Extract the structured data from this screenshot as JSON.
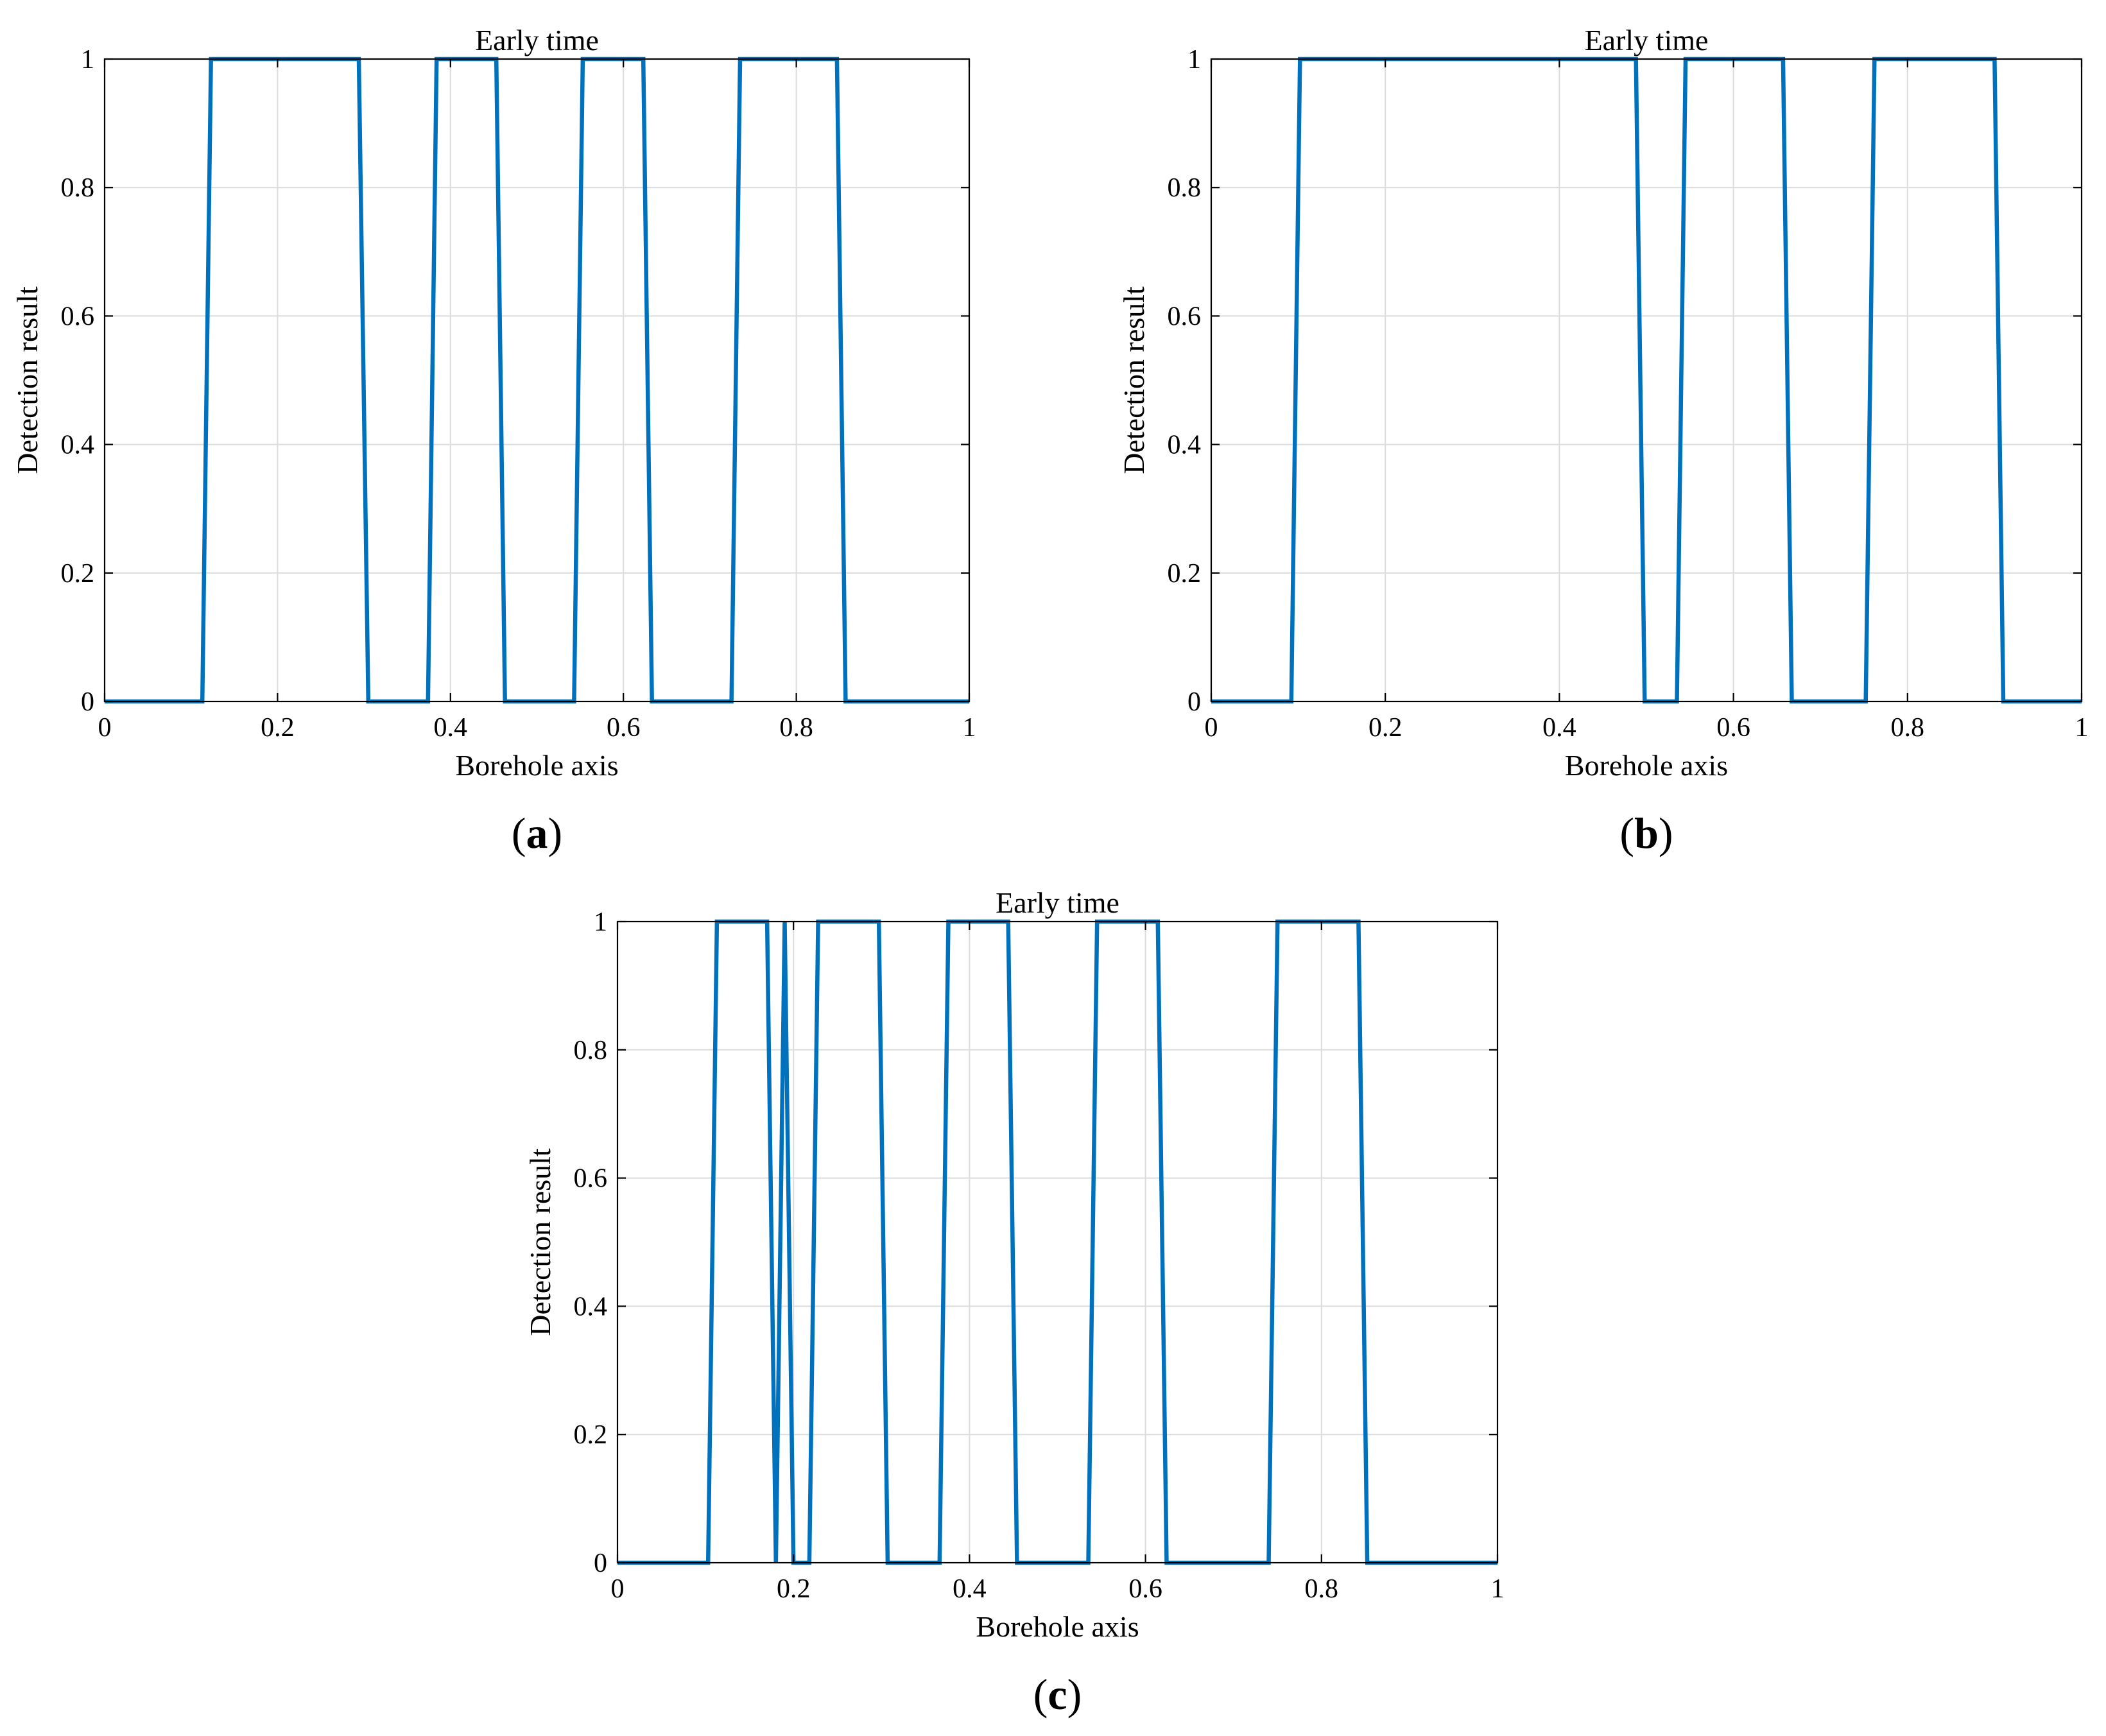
{
  "colors": {
    "series": "#0072BD",
    "grid": "#dcdcdc",
    "axes": "#000000"
  },
  "chart_data": [
    {
      "type": "line",
      "panel": "a",
      "panel_label": "a",
      "title": "Early time",
      "xlabel": "Borehole axis",
      "ylabel": "Detection result",
      "xlim": [
        0,
        1
      ],
      "ylim": [
        0,
        1
      ],
      "xticks": [
        "0",
        "0.2",
        "0.4",
        "0.6",
        "0.8",
        "1"
      ],
      "yticks": [
        "0",
        "0.2",
        "0.4",
        "0.6",
        "0.8",
        "1"
      ],
      "grid": true,
      "series": [
        {
          "x": [
            0,
            0.113,
            0.123,
            0.294,
            0.305,
            0.374,
            0.384,
            0.453,
            0.463,
            0.543,
            0.553,
            0.623,
            0.633,
            0.725,
            0.735,
            0.847,
            0.857,
            1
          ],
          "y": [
            0,
            0,
            1,
            1,
            0,
            0,
            1,
            1,
            0,
            0,
            1,
            1,
            0,
            0,
            1,
            1,
            0,
            0
          ]
        }
      ]
    },
    {
      "type": "line",
      "panel": "b",
      "panel_label": "b",
      "title": "Early time",
      "xlabel": "Borehole axis",
      "ylabel": "Detection result",
      "xlim": [
        0,
        1
      ],
      "ylim": [
        0,
        1
      ],
      "xticks": [
        "0",
        "0.2",
        "0.4",
        "0.6",
        "0.8",
        "1"
      ],
      "yticks": [
        "0",
        "0.2",
        "0.4",
        "0.6",
        "0.8",
        "1"
      ],
      "grid": true,
      "series": [
        {
          "x": [
            0,
            0.092,
            0.102,
            0.488,
            0.498,
            0.535,
            0.545,
            0.657,
            0.667,
            0.752,
            0.762,
            0.9,
            0.91,
            1
          ],
          "y": [
            0,
            0,
            1,
            1,
            0,
            0,
            1,
            1,
            0,
            0,
            1,
            1,
            0,
            0
          ]
        }
      ]
    },
    {
      "type": "line",
      "panel": "c",
      "panel_label": "c",
      "title": "Early time",
      "xlabel": "Borehole axis",
      "ylabel": "Detection result",
      "xlim": [
        0,
        1
      ],
      "ylim": [
        0,
        1
      ],
      "xticks": [
        "0",
        "0.2",
        "0.4",
        "0.6",
        "0.8",
        "1"
      ],
      "yticks": [
        "0",
        "0.2",
        "0.4",
        "0.6",
        "0.8",
        "1"
      ],
      "grid": true,
      "series": [
        {
          "x": [
            0,
            0.103,
            0.113,
            0.17,
            0.18,
            0.19,
            0.2,
            0.21,
            0.218,
            0.228,
            0.297,
            0.307,
            0.366,
            0.376,
            0.444,
            0.454,
            0.535,
            0.545,
            0.614,
            0.624,
            0.74,
            0.75,
            0.842,
            0.852,
            1
          ],
          "y": [
            0,
            0,
            1,
            1,
            0,
            1,
            0,
            0,
            0,
            1,
            1,
            0,
            0,
            1,
            1,
            0,
            0,
            1,
            1,
            0,
            0,
            1,
            1,
            0,
            0
          ]
        }
      ]
    }
  ]
}
